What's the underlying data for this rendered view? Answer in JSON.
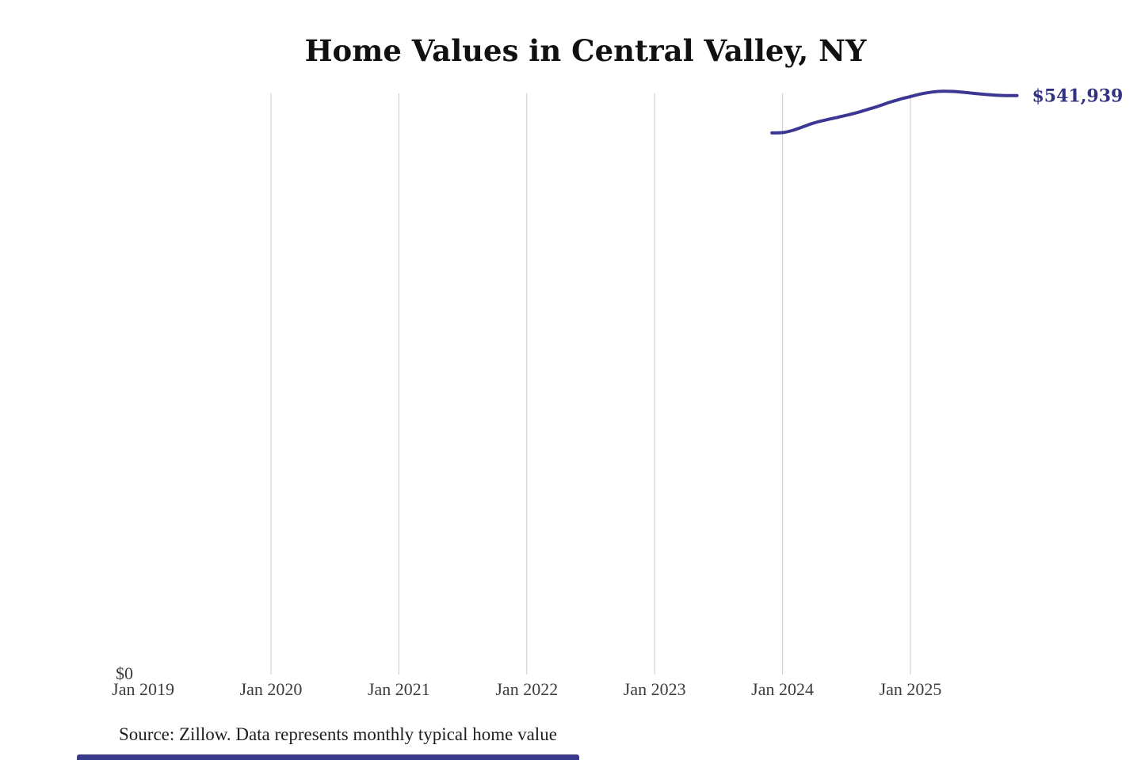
{
  "chart": {
    "title": "Home Values in Central Valley, NY"
  },
  "chart_data": {
    "type": "line",
    "title": "Home Values in Central Valley, NY",
    "grid": "vertical-only",
    "legend": "none",
    "x_ticks": [
      {
        "label": "Jan 2019",
        "gridline": false
      },
      {
        "label": "Jan 2020",
        "gridline": true
      },
      {
        "label": "Jan 2021",
        "gridline": true
      },
      {
        "label": "Jan 2022",
        "gridline": true
      },
      {
        "label": "Jan 2023",
        "gridline": true
      },
      {
        "label": "Jan 2024",
        "gridline": true
      },
      {
        "label": "Jan 2025",
        "gridline": true
      }
    ],
    "y_axis": {
      "min": 0,
      "zero_label": "$0"
    },
    "end_label": "$541,939",
    "end_value": 541939,
    "series": [
      {
        "name": "Typical home value",
        "points": [
          {
            "date": "2023-12",
            "value": 507000
          },
          {
            "date": "2024-01",
            "value": 507300
          },
          {
            "date": "2024-02",
            "value": 509500
          },
          {
            "date": "2024-03",
            "value": 513000
          },
          {
            "date": "2024-04",
            "value": 516500
          },
          {
            "date": "2024-05",
            "value": 519000
          },
          {
            "date": "2024-06",
            "value": 521200
          },
          {
            "date": "2024-07",
            "value": 523500
          },
          {
            "date": "2024-08",
            "value": 526000
          },
          {
            "date": "2024-09",
            "value": 529000
          },
          {
            "date": "2024-10",
            "value": 532000
          },
          {
            "date": "2024-11",
            "value": 535500
          },
          {
            "date": "2024-12",
            "value": 538500
          },
          {
            "date": "2025-01",
            "value": 541000
          },
          {
            "date": "2025-02",
            "value": 543500
          },
          {
            "date": "2025-03",
            "value": 545200
          },
          {
            "date": "2025-04",
            "value": 546000
          },
          {
            "date": "2025-05",
            "value": 545800
          },
          {
            "date": "2025-06",
            "value": 545000
          },
          {
            "date": "2025-07",
            "value": 544000
          },
          {
            "date": "2025-08",
            "value": 543000
          },
          {
            "date": "2025-09",
            "value": 542300
          },
          {
            "date": "2025-10",
            "value": 542000
          },
          {
            "date": "2025-11",
            "value": 541939
          }
        ]
      }
    ],
    "colors": {
      "line": "#3c3792",
      "end_label": "#323283",
      "gridline": "#cbcbcb",
      "axis_text": "#3d3d3d",
      "title_text": "#111111",
      "source_text": "#1e1e1e",
      "bottom_bar": "#39398e"
    }
  },
  "footer": {
    "source": "Source: Zillow. Data represents monthly typical home value"
  }
}
